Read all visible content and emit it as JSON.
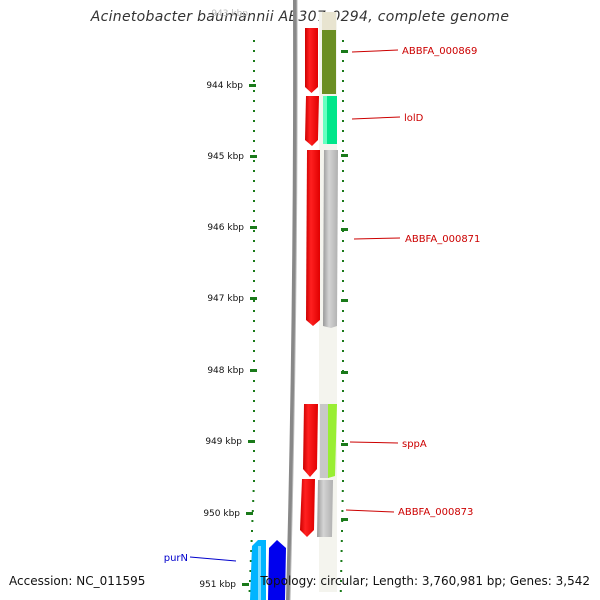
{
  "title": "Acinetobacter baumannii AB307-0294, complete genome",
  "accession": "Accession: NC_011595",
  "stats": "Topology: circular; Length: 3,760,981 bp; Genes: 3,542",
  "scale": {
    "top_partial_label": "943 kbp",
    "ticks": [
      {
        "label": "944 kbp"
      },
      {
        "label": "945 kbp"
      },
      {
        "label": "946 kbp"
      },
      {
        "label": "947 kbp"
      },
      {
        "label": "948 kbp"
      },
      {
        "label": "949 kbp"
      },
      {
        "label": "950 kbp"
      },
      {
        "label": "951 kbp"
      }
    ]
  },
  "genes": [
    {
      "name": "ABBFA_000869",
      "label_color": "#cc0000",
      "track_color": "#6b8e23"
    },
    {
      "name": "lolD",
      "label_color": "#cc0000",
      "track_color": "#00e68a"
    },
    {
      "name": "ABBFA_000871",
      "label_color": "#cc0000",
      "track_color": "#b8b8b8"
    },
    {
      "name": "sppA",
      "label_color": "#cc0000",
      "track_color": "#99ee33"
    },
    {
      "name": "ABBFA_000873",
      "label_color": "#cc0000",
      "track_color": "#b8b8b8"
    },
    {
      "name": "purN",
      "label_color": "#0000cc",
      "track_color": "#00aaff"
    }
  ],
  "colors": {
    "forward_strand": "#ff0000",
    "reverse_strand": "#0000ee",
    "reverse_light": "#00b4ff",
    "ticks": "#1a7a1a",
    "backbone": "#888888"
  }
}
